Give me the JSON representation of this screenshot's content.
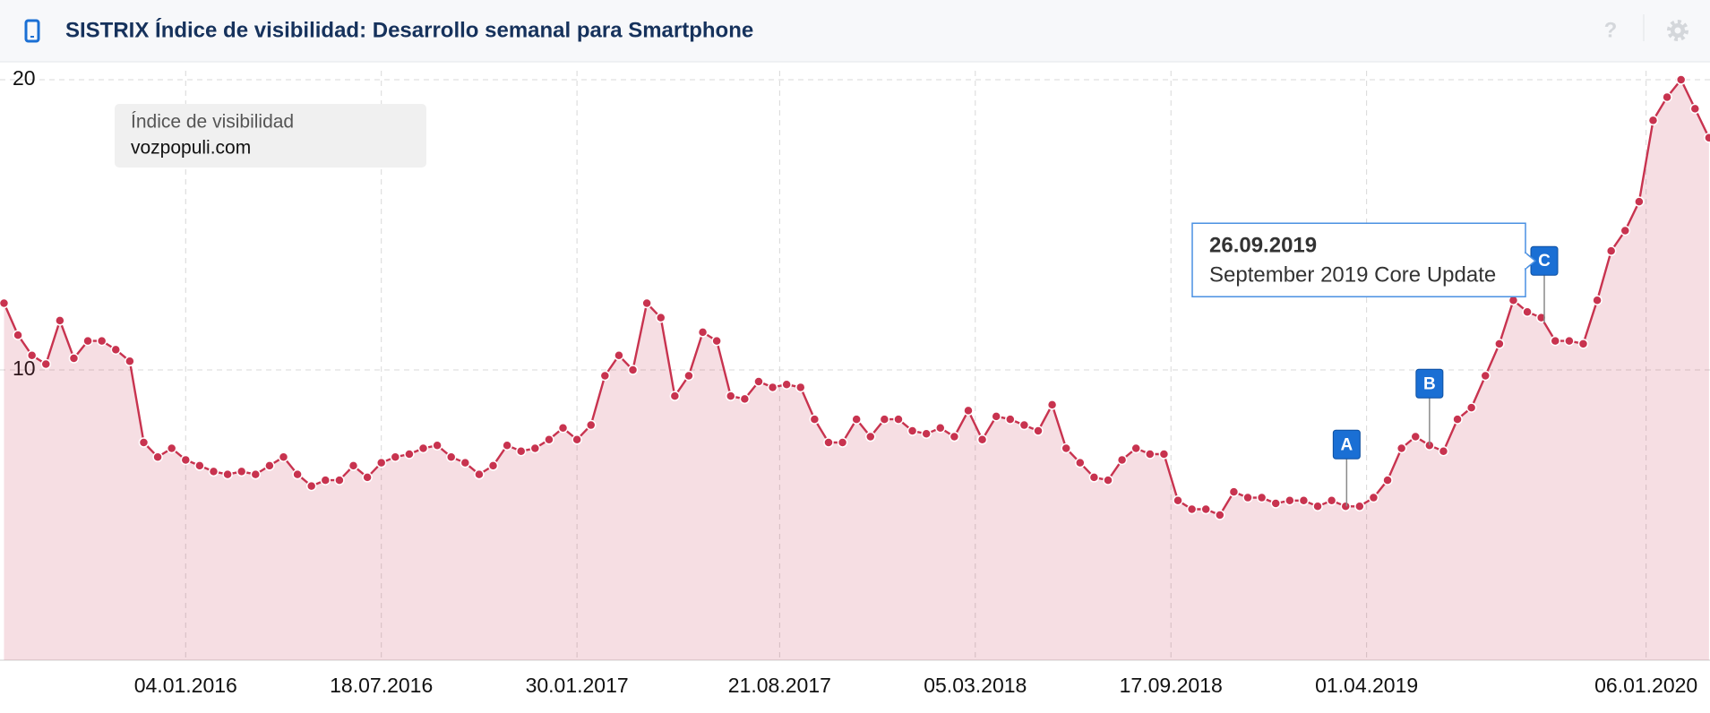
{
  "header": {
    "title": "SISTRIX Índice de visibilidad: Desarrollo semanal para Smartphone",
    "help": "?"
  },
  "chart_data": {
    "type": "area",
    "legend": {
      "title": "Índice de visibilidad",
      "domain": "vozpopuli.com"
    },
    "x": [
      "06.07.2015",
      "20.07.2015",
      "03.08.2015",
      "17.08.2015",
      "31.08.2015",
      "14.09.2015",
      "28.09.2015",
      "12.10.2015",
      "26.10.2015",
      "09.11.2015",
      "23.11.2015",
      "07.12.2015",
      "21.12.2015",
      "04.01.2016",
      "18.01.2016",
      "01.02.2016",
      "15.02.2016",
      "29.02.2016",
      "14.03.2016",
      "28.03.2016",
      "11.04.2016",
      "25.04.2016",
      "09.05.2016",
      "23.05.2016",
      "06.06.2016",
      "20.06.2016",
      "04.07.2016",
      "18.07.2016",
      "01.08.2016",
      "15.08.2016",
      "29.08.2016",
      "12.09.2016",
      "26.09.2016",
      "10.10.2016",
      "24.10.2016",
      "07.11.2016",
      "21.11.2016",
      "05.12.2016",
      "19.12.2016",
      "02.01.2017",
      "16.01.2017",
      "30.01.2017",
      "13.02.2017",
      "27.02.2017",
      "13.03.2017",
      "27.03.2017",
      "10.04.2017",
      "24.04.2017",
      "08.05.2017",
      "22.05.2017",
      "05.06.2017",
      "19.06.2017",
      "03.07.2017",
      "17.07.2017",
      "31.07.2017",
      "14.08.2017",
      "28.08.2017",
      "11.09.2017",
      "25.09.2017",
      "09.10.2017",
      "23.10.2017",
      "06.11.2017",
      "20.11.2017",
      "04.12.2017",
      "18.12.2017",
      "01.01.2018",
      "15.01.2018",
      "29.01.2018",
      "12.02.2018",
      "26.02.2018",
      "12.03.2018",
      "26.03.2018",
      "09.04.2018",
      "23.04.2018",
      "07.05.2018",
      "21.05.2018",
      "04.06.2018",
      "18.06.2018",
      "02.07.2018",
      "16.07.2018",
      "30.07.2018",
      "13.08.2018",
      "27.08.2018",
      "10.09.2018",
      "24.09.2018",
      "08.10.2018",
      "22.10.2018",
      "05.11.2018",
      "19.11.2018",
      "03.12.2018",
      "17.12.2018",
      "31.12.2018",
      "14.01.2019",
      "28.01.2019",
      "11.02.2019",
      "25.02.2019",
      "11.03.2019",
      "25.03.2019",
      "08.04.2019",
      "22.04.2019",
      "06.05.2019",
      "20.05.2019",
      "03.06.2019",
      "17.06.2019",
      "01.07.2019",
      "15.07.2019",
      "29.07.2019",
      "12.08.2019",
      "26.08.2019",
      "09.09.2019",
      "23.09.2019",
      "07.10.2019",
      "21.10.2019",
      "04.11.2019",
      "18.11.2019",
      "02.12.2019",
      "16.12.2019",
      "30.12.2019",
      "13.01.2020",
      "27.01.2020",
      "10.02.2020",
      "24.02.2020",
      "09.03.2020"
    ],
    "series": [
      {
        "color": "#c8334f",
        "values": [
          12.3,
          11.2,
          10.5,
          10.2,
          11.7,
          10.4,
          11.0,
          11.0,
          10.7,
          10.3,
          7.5,
          7.0,
          7.3,
          6.9,
          6.7,
          6.5,
          6.4,
          6.5,
          6.4,
          6.7,
          7.0,
          6.4,
          6.0,
          6.2,
          6.2,
          6.7,
          6.3,
          6.8,
          7.0,
          7.1,
          7.3,
          7.4,
          7.0,
          6.8,
          6.4,
          6.7,
          7.4,
          7.2,
          7.3,
          7.6,
          8.0,
          7.6,
          8.1,
          9.8,
          10.5,
          10.0,
          12.3,
          11.8,
          9.1,
          9.8,
          11.3,
          11.0,
          9.1,
          9.0,
          9.6,
          9.4,
          9.5,
          9.4,
          8.3,
          7.5,
          7.5,
          8.3,
          7.7,
          8.3,
          8.3,
          7.9,
          7.8,
          8.0,
          7.7,
          8.6,
          7.6,
          8.4,
          8.3,
          8.1,
          7.9,
          8.8,
          7.3,
          6.8,
          6.3,
          6.2,
          6.9,
          7.3,
          7.1,
          7.1,
          5.5,
          5.2,
          5.2,
          5.0,
          5.8,
          5.6,
          5.6,
          5.4,
          5.5,
          5.5,
          5.3,
          5.5,
          5.3,
          5.3,
          5.6,
          6.2,
          7.3,
          7.7,
          7.4,
          7.2,
          8.3,
          8.7,
          9.8,
          10.9,
          12.4,
          12.0,
          11.8,
          11.0,
          11.0,
          10.9,
          12.4,
          14.1,
          14.8,
          15.8,
          18.6,
          19.4,
          20.0,
          19.0,
          18.0
        ]
      }
    ],
    "xlim": [
      "02.07.2015",
      "10.03.2020"
    ],
    "xticks": [
      "04.01.2016",
      "18.07.2016",
      "30.01.2017",
      "21.08.2017",
      "05.03.2018",
      "17.09.2018",
      "01.04.2019",
      "06.01.2020"
    ],
    "ylim": [
      0,
      20
    ],
    "yticks": [
      10,
      20
    ],
    "grid": true,
    "events": [
      {
        "label": "A",
        "x": "12.03.2019"
      },
      {
        "label": "B",
        "x": "03.06.2019"
      },
      {
        "label": "C",
        "x": "26.09.2019",
        "title": "September 2019 Core Update"
      }
    ]
  }
}
